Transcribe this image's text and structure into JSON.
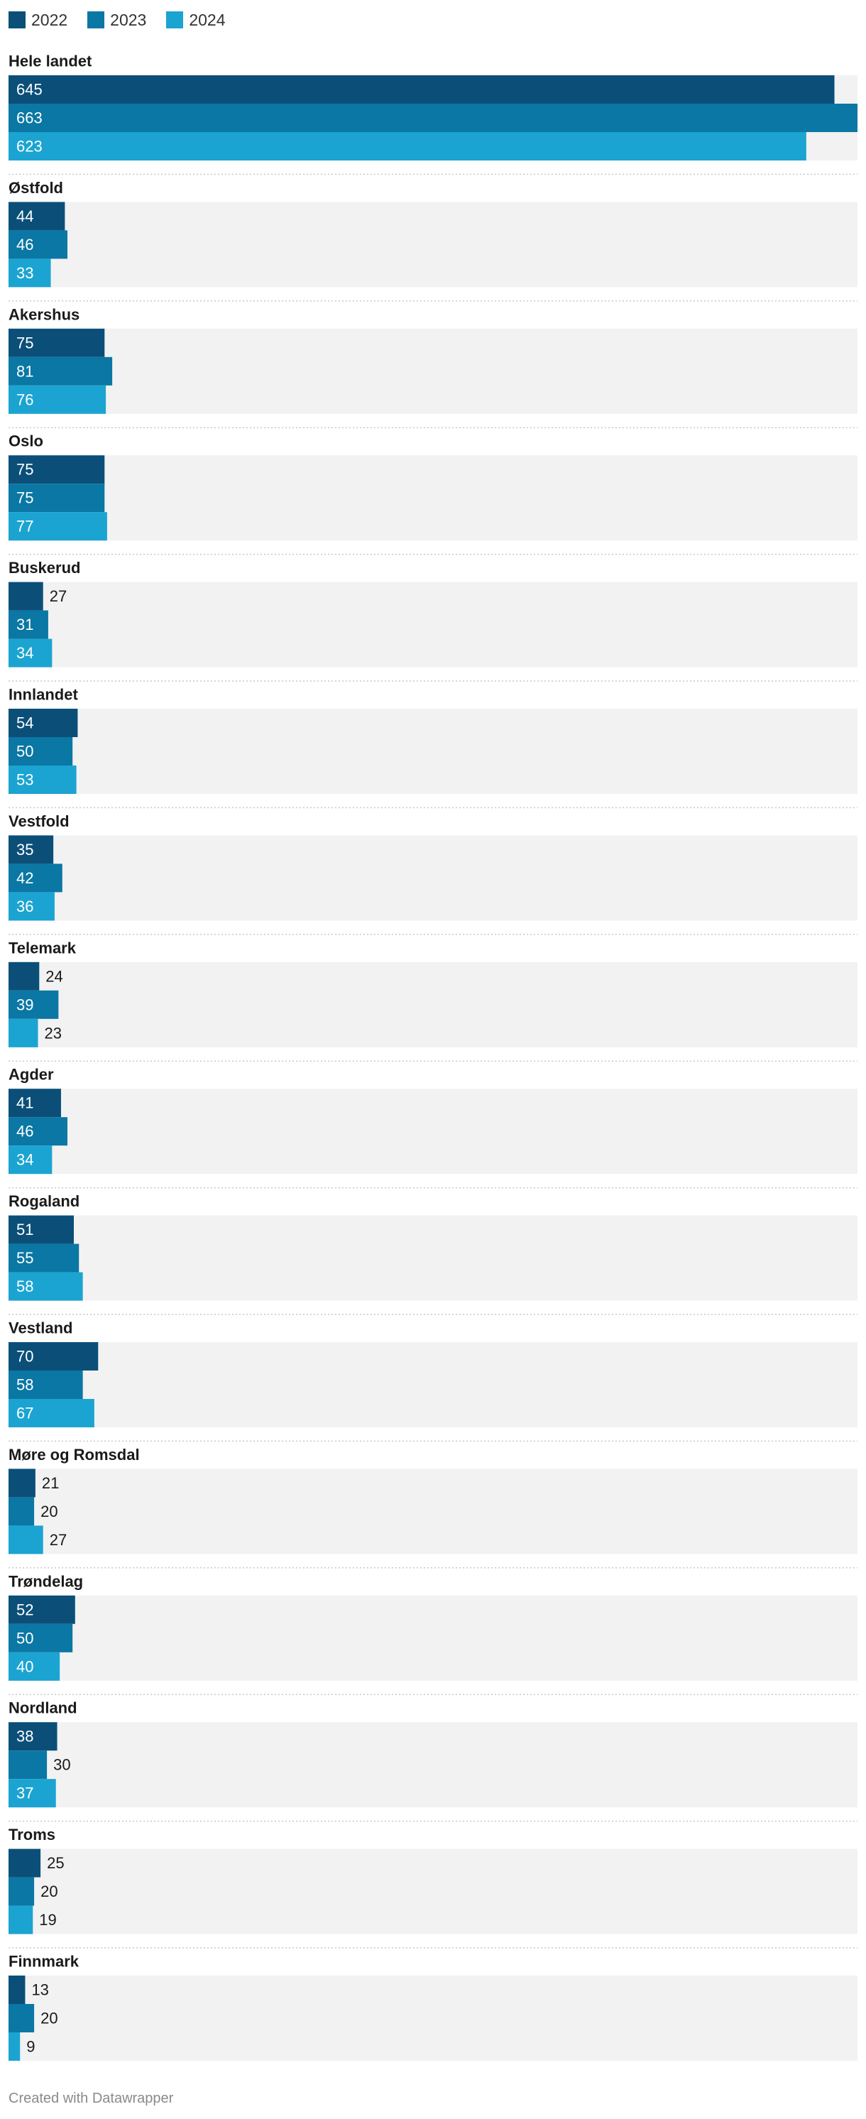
{
  "chart_data": {
    "type": "bar",
    "orientation": "horizontal",
    "legend_position": "top-left",
    "colors": [
      "#0b4f79",
      "#0a77a4",
      "#1ba4d1"
    ],
    "series_names": [
      "2022",
      "2023",
      "2024"
    ],
    "groups": [
      {
        "name": "Hele landet",
        "values": [
          645,
          663,
          623
        ]
      },
      {
        "name": "Østfold",
        "values": [
          44,
          46,
          33
        ]
      },
      {
        "name": "Akershus",
        "values": [
          75,
          81,
          76
        ]
      },
      {
        "name": "Oslo",
        "values": [
          75,
          75,
          77
        ]
      },
      {
        "name": "Buskerud",
        "values": [
          27,
          31,
          34
        ]
      },
      {
        "name": "Innlandet",
        "values": [
          54,
          50,
          53
        ]
      },
      {
        "name": "Vestfold",
        "values": [
          35,
          42,
          36
        ]
      },
      {
        "name": "Telemark",
        "values": [
          24,
          39,
          23
        ]
      },
      {
        "name": "Agder",
        "values": [
          41,
          46,
          34
        ]
      },
      {
        "name": "Rogaland",
        "values": [
          51,
          55,
          58
        ]
      },
      {
        "name": "Vestland",
        "values": [
          70,
          58,
          67
        ]
      },
      {
        "name": "Møre og Romsdal",
        "values": [
          21,
          20,
          27
        ]
      },
      {
        "name": "Trøndelag",
        "values": [
          52,
          50,
          40
        ]
      },
      {
        "name": "Nordland",
        "values": [
          38,
          30,
          37
        ]
      },
      {
        "name": "Troms",
        "values": [
          25,
          20,
          19
        ]
      },
      {
        "name": "Finnmark",
        "values": [
          13,
          20,
          9
        ]
      }
    ],
    "xlim": [
      0,
      663
    ]
  },
  "footer": {
    "credit": "Created with Datawrapper"
  }
}
